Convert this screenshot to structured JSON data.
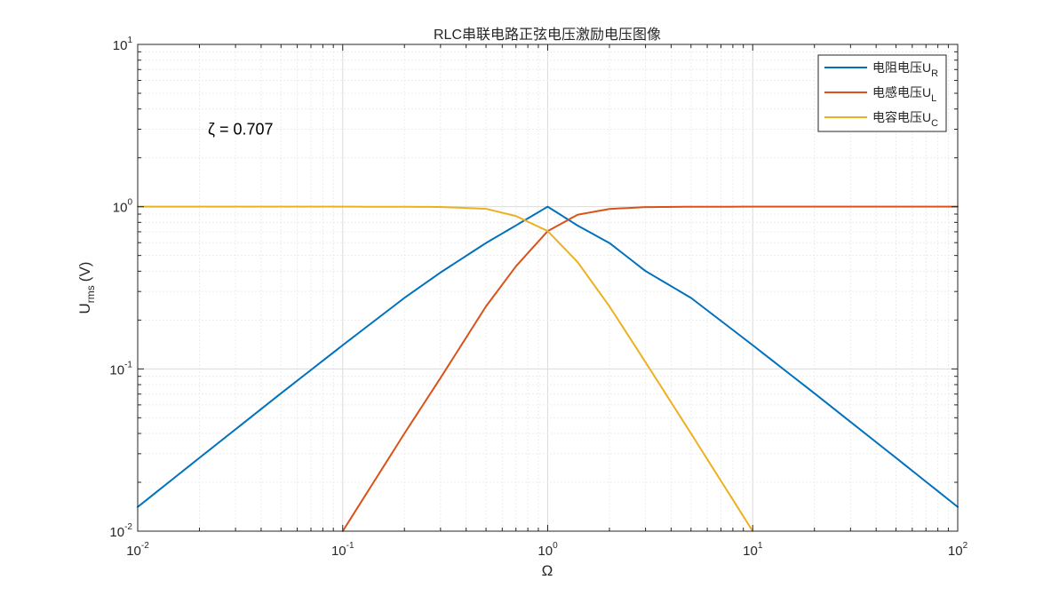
{
  "chart_data": {
    "type": "line",
    "title": "RLC串联电路正弦电压激励电压图像",
    "xlabel": "Ω",
    "ylabel_main": "U",
    "ylabel_sub": "rms",
    "ylabel_unit": "(V)",
    "x_scale": "log",
    "y_scale": "log",
    "xlim": [
      0.01,
      100
    ],
    "ylim": [
      0.01,
      10
    ],
    "grid": true,
    "legend_position": "top-right",
    "x_ticks": [
      {
        "base": "10",
        "exp": "-2",
        "value": 0.01
      },
      {
        "base": "10",
        "exp": "-1",
        "value": 0.1
      },
      {
        "base": "10",
        "exp": "0",
        "value": 1
      },
      {
        "base": "10",
        "exp": "1",
        "value": 10
      },
      {
        "base": "10",
        "exp": "2",
        "value": 100
      }
    ],
    "y_ticks": [
      {
        "base": "10",
        "exp": "-2",
        "value": 0.01
      },
      {
        "base": "10",
        "exp": "-1",
        "value": 0.1
      },
      {
        "base": "10",
        "exp": "0",
        "value": 1
      },
      {
        "base": "10",
        "exp": "1",
        "value": 10
      }
    ],
    "annotation": {
      "text": "ζ = 0.707",
      "x": 0.022,
      "y": 3.0
    },
    "series": [
      {
        "name_main": "电阻电压U",
        "name_sub": "R",
        "color": "#0072BD",
        "x": [
          0.01,
          0.02,
          0.05,
          0.1,
          0.2,
          0.3,
          0.5,
          0.7,
          1,
          1.4,
          2,
          3,
          5,
          10,
          20,
          50,
          100
        ],
        "y": [
          0.0141,
          0.0283,
          0.0707,
          0.14,
          0.274,
          0.393,
          0.597,
          0.766,
          1.0,
          0.764,
          0.597,
          0.401,
          0.274,
          0.14,
          0.0707,
          0.0283,
          0.0141
        ]
      },
      {
        "name_main": "电感电压U",
        "name_sub": "L",
        "color": "#D95319",
        "x": [
          0.1,
          0.2,
          0.3,
          0.5,
          0.7,
          1,
          1.4,
          2,
          3,
          5,
          10,
          20,
          50,
          100
        ],
        "y": [
          0.01,
          0.04,
          0.088,
          0.243,
          0.429,
          0.7071,
          0.892,
          0.968,
          0.994,
          0.999,
          1.0,
          1.0,
          1.0,
          1.0
        ]
      },
      {
        "name_main": "电容电压U",
        "name_sub": "C",
        "color": "#EDB120",
        "x": [
          0.01,
          0.1,
          0.2,
          0.3,
          0.5,
          0.7,
          1,
          1.4,
          2,
          3,
          5,
          10
        ],
        "y": [
          1.0,
          1.0,
          0.999,
          0.996,
          0.97,
          0.875,
          0.7071,
          0.455,
          0.243,
          0.11,
          0.04,
          0.01
        ]
      }
    ]
  }
}
